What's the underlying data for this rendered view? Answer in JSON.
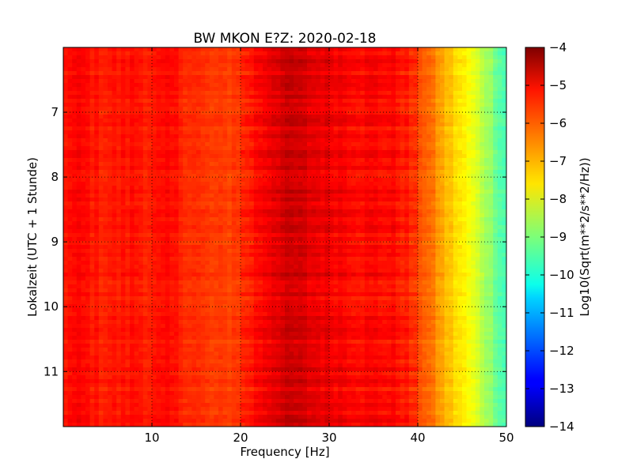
{
  "chart_data": {
    "type": "heatmap",
    "title": "BW MKON E?Z: 2020-02-18",
    "xlabel": "Frequency [Hz]",
    "ylabel": "Lokalzeit (UTC + 1 Stunde)",
    "xlim": [
      0,
      50
    ],
    "ylim": [
      6,
      11.85
    ],
    "y_inverted": true,
    "x_ticks": [
      10,
      20,
      30,
      40,
      50
    ],
    "y_ticks": [
      7,
      8,
      9,
      10,
      11
    ],
    "grid": true,
    "colormap": "jet",
    "colorbar": {
      "label": "Log10(Sqrt(m**2/s**2/Hz))",
      "range": [
        -14,
        -4
      ],
      "ticks": [
        -4,
        -5,
        -6,
        -7,
        -8,
        -9,
        -10,
        -11,
        -12,
        -13,
        -14
      ]
    },
    "frequency_profile": {
      "frequencies_hz": [
        0,
        2,
        4,
        6,
        8,
        10,
        12,
        14,
        16,
        18,
        20,
        22,
        24,
        26,
        28,
        30,
        32,
        34,
        36,
        38,
        39,
        40,
        41,
        42,
        43,
        44,
        45,
        46,
        47,
        48,
        49,
        50
      ],
      "log10_amplitude": [
        -5.4,
        -5.3,
        -5.5,
        -5.5,
        -5.4,
        -5.5,
        -5.4,
        -5.6,
        -5.8,
        -5.9,
        -5.7,
        -5.3,
        -4.9,
        -4.8,
        -5.0,
        -5.1,
        -5.2,
        -5.3,
        -5.3,
        -5.4,
        -5.6,
        -5.9,
        -6.2,
        -6.6,
        -7.0,
        -7.3,
        -7.6,
        -7.9,
        -8.3,
        -8.7,
        -9.2,
        -9.6
      ]
    }
  }
}
